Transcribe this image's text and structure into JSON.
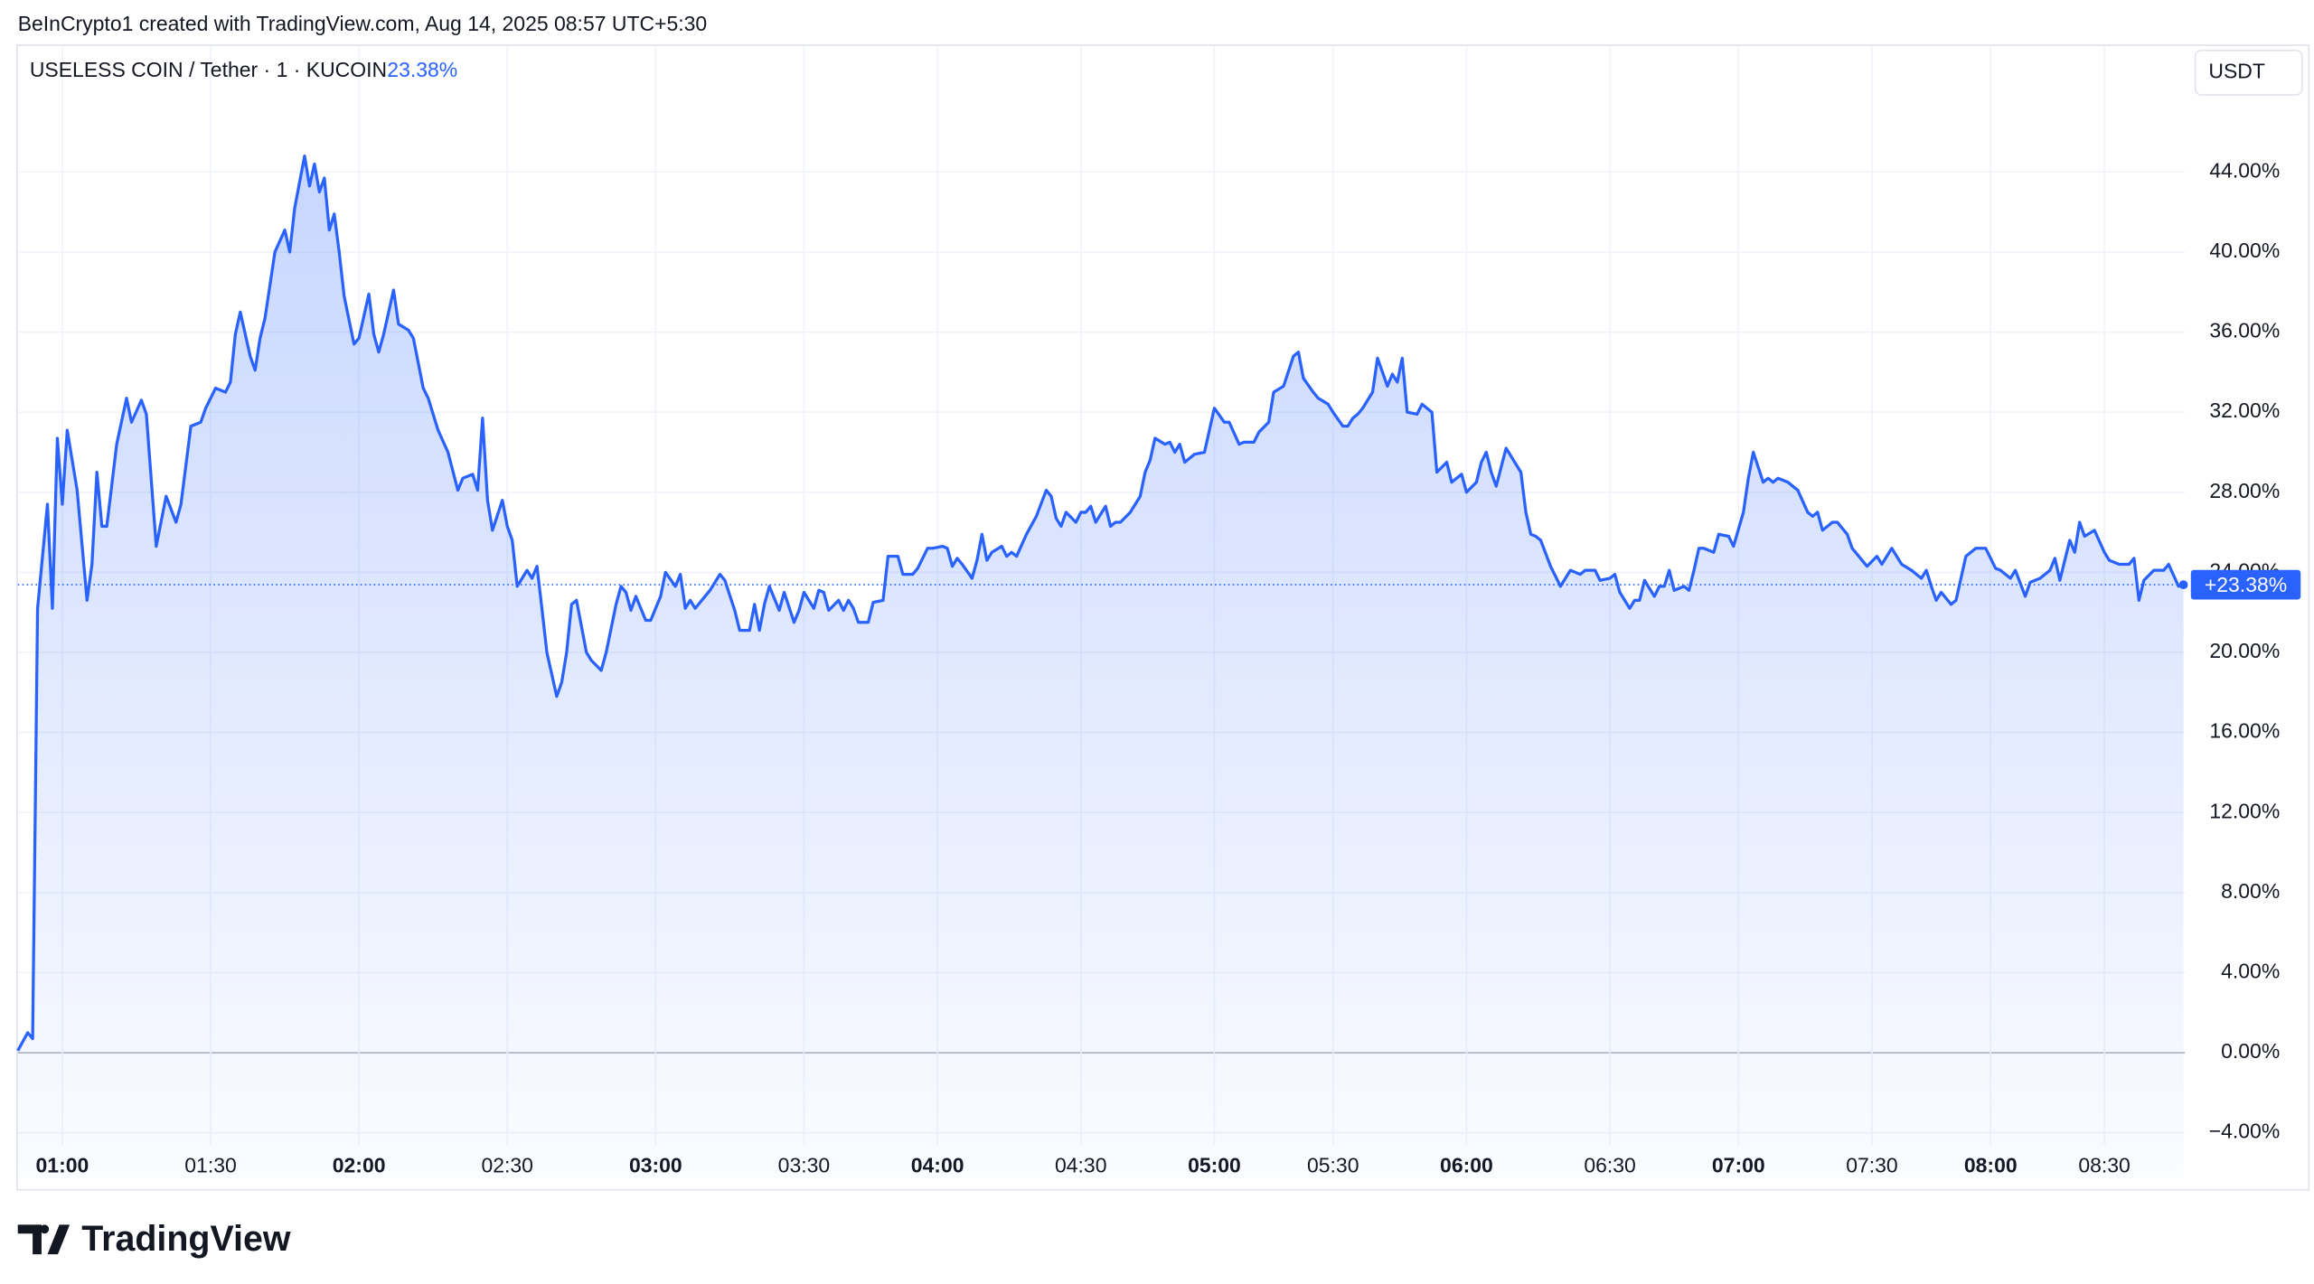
{
  "header": {
    "credit": "BeInCrypto1 created with TradingView.com, Aug 14, 2025 08:57 UTC+5:30",
    "logo": "TradingView"
  },
  "chart_data": {
    "type": "line",
    "symbol": "USELESS COIN / Tether · 1 · KUCOIN",
    "symbol_change": "23.38%",
    "currency": "USDT",
    "last_label": "+23.38%",
    "color": "#2962ff",
    "grid": true,
    "x": [
      0,
      2,
      3,
      4,
      5,
      6,
      7,
      8,
      9,
      10,
      12,
      14,
      15,
      16,
      17,
      18,
      20,
      22,
      23,
      25,
      26,
      28,
      30,
      32,
      33,
      35,
      37,
      38,
      40,
      42,
      43,
      44,
      45,
      47,
      48,
      49,
      50,
      52,
      54,
      55,
      56,
      58,
      59,
      60,
      61,
      62,
      63,
      64,
      65,
      66,
      68,
      69,
      71,
      72,
      73,
      74,
      76,
      77,
      79,
      80,
      82,
      83,
      85,
      87,
      89,
      90,
      92,
      93,
      94,
      95,
      96,
      98,
      99,
      100,
      101,
      103,
      104,
      105,
      106,
      107,
      109,
      110,
      111,
      112,
      113,
      115,
      116,
      118,
      119,
      121,
      122,
      123,
      124,
      125,
      127,
      128,
      130,
      131,
      133,
      134,
      135,
      136,
      137,
      139,
      140,
      142,
      143,
      145,
      146,
      148,
      149,
      150,
      151,
      152,
      154,
      155,
      157,
      158,
      159,
      161,
      162,
      163,
      164,
      166,
      167,
      168,
      169,
      170,
      172,
      173,
      175,
      176,
      178,
      179,
      181,
      182,
      184,
      185,
      187,
      188,
      189,
      190,
      191,
      193,
      194,
      195,
      196,
      197,
      199,
      200,
      201,
      202,
      204,
      206,
      208,
      209,
      210,
      211,
      212,
      214,
      215,
      216,
      217,
      218,
      220,
      221,
      222,
      223,
      225,
      227,
      228,
      229,
      230,
      232,
      233,
      234,
      235,
      236,
      238,
      240,
      241,
      242,
      244,
      245,
      247,
      248,
      250,
      251,
      253,
      254,
      256,
      258,
      259,
      260,
      262,
      263,
      265,
      266,
      268,
      269,
      270,
      271,
      272,
      274,
      275,
      277,
      278,
      279,
      280,
      281,
      283,
      284,
      285,
      286,
      287,
      289,
      290,
      291,
      292,
      293,
      295,
      296,
      297,
      298,
      299,
      301,
      302,
      304,
      305,
      306,
      307,
      308,
      310,
      312,
      314,
      316,
      317,
      319,
      320,
      322,
      323,
      324,
      326,
      327,
      328,
      329,
      331,
      332,
      333,
      334,
      335,
      337,
      338,
      339,
      340,
      341,
      343,
      344,
      346,
      347,
      349,
      350,
      351,
      353,
      354,
      355,
      356,
      358,
      360,
      362,
      363,
      364,
      365,
      367,
      368,
      370,
      371,
      373,
      374,
      376,
      377,
      378,
      379,
      381,
      383,
      385,
      386,
      387,
      388,
      389,
      391,
      392,
      393,
      394,
      396,
      398,
      400,
      401,
      403,
      404,
      406,
      407,
      409,
      411,
      412,
      413,
      415,
      416,
      417,
      418,
      420,
      422,
      423,
      425,
      427,
      428,
      429,
      430,
      432,
      434,
      435,
      437,
      438
    ],
    "values": [
      0.1,
      1.0,
      0.7,
      22.2,
      24.8,
      27.4,
      22.2,
      30.7,
      27.4,
      31.1,
      28.1,
      22.6,
      24.4,
      29.0,
      26.3,
      26.3,
      30.4,
      32.7,
      31.5,
      32.6,
      31.9,
      25.3,
      27.8,
      26.5,
      27.4,
      31.3,
      31.5,
      32.2,
      33.2,
      33.0,
      33.5,
      35.9,
      37.0,
      34.8,
      34.1,
      35.7,
      36.7,
      40.0,
      41.1,
      40.0,
      42.2,
      44.8,
      43.3,
      44.4,
      43.0,
      43.7,
      41.1,
      41.9,
      40.0,
      37.8,
      35.4,
      35.7,
      37.9,
      35.9,
      35.0,
      35.9,
      38.1,
      36.4,
      36.1,
      35.7,
      33.2,
      32.7,
      31.1,
      30.0,
      28.1,
      28.7,
      28.9,
      28.1,
      31.7,
      27.6,
      26.1,
      27.6,
      26.3,
      25.6,
      23.3,
      24.1,
      23.7,
      24.3,
      22.2,
      20.0,
      17.8,
      18.5,
      20.0,
      22.4,
      22.6,
      20.0,
      19.6,
      19.1,
      20.0,
      22.4,
      23.3,
      23.0,
      22.1,
      22.8,
      21.6,
      21.6,
      22.8,
      24.0,
      23.3,
      23.9,
      22.2,
      22.6,
      22.2,
      22.8,
      23.1,
      23.9,
      23.6,
      22.1,
      21.1,
      21.1,
      22.4,
      21.1,
      22.4,
      23.3,
      22.1,
      23.0,
      21.5,
      22.1,
      23.0,
      22.2,
      23.1,
      23.0,
      22.1,
      22.6,
      22.1,
      22.6,
      22.2,
      21.5,
      21.5,
      22.5,
      22.6,
      24.8,
      24.8,
      23.9,
      23.9,
      24.2,
      25.2,
      25.2,
      25.3,
      25.2,
      24.3,
      24.7,
      24.4,
      23.7,
      24.6,
      25.9,
      24.6,
      25.0,
      25.3,
      24.8,
      25.0,
      24.8,
      25.9,
      26.8,
      28.1,
      27.8,
      26.7,
      26.3,
      27.0,
      26.5,
      27.0,
      27.0,
      27.3,
      26.5,
      27.3,
      26.3,
      26.5,
      26.5,
      27.0,
      27.8,
      29.0,
      29.6,
      30.7,
      30.4,
      30.5,
      30.0,
      30.4,
      29.5,
      29.9,
      30.0,
      31.1,
      32.2,
      31.5,
      31.5,
      30.4,
      30.5,
      30.5,
      31.0,
      31.5,
      33.0,
      33.3,
      34.8,
      35.0,
      33.7,
      33.0,
      32.7,
      32.4,
      32.0,
      31.3,
      31.3,
      31.7,
      31.9,
      32.2,
      33.0,
      34.7,
      33.3,
      33.9,
      33.5,
      34.7,
      32.0,
      31.9,
      32.4,
      32.2,
      32.0,
      29.0,
      29.5,
      28.5,
      28.7,
      28.9,
      28.0,
      28.5,
      29.5,
      30.0,
      29.0,
      28.3,
      30.2,
      29.8,
      29.0,
      27.0,
      25.9,
      25.8,
      25.6,
      24.3,
      23.3,
      24.1,
      23.9,
      24.1,
      24.1,
      23.6,
      23.7,
      23.9,
      23.0,
      22.2,
      22.6,
      22.6,
      23.6,
      22.8,
      23.3,
      23.3,
      24.1,
      23.1,
      23.3,
      23.1,
      24.1,
      25.2,
      25.2,
      25.0,
      25.9,
      25.8,
      25.3,
      27.0,
      28.7,
      30.0,
      28.5,
      28.7,
      28.5,
      28.7,
      28.5,
      28.1,
      27.0,
      26.8,
      27.0,
      26.1,
      26.5,
      26.5,
      25.9,
      25.2,
      24.6,
      24.3,
      24.8,
      24.4,
      24.8,
      25.2,
      24.4,
      24.1,
      23.7,
      24.1,
      23.3,
      22.6,
      23.0,
      22.4,
      22.6,
      23.7,
      24.8,
      25.2,
      25.2,
      24.2,
      24.1,
      23.7,
      24.1,
      22.8,
      23.5,
      23.7,
      24.1,
      24.7,
      23.6,
      25.6,
      25.0,
      26.5,
      25.8,
      26.1,
      25.0,
      24.6,
      24.4,
      24.4,
      24.7,
      22.6,
      23.6,
      24.1,
      24.1,
      24.4,
      23.3,
      23.38
    ],
    "xlim": [
      0,
      438
    ],
    "xticks": [
      {
        "value": 9,
        "label": "01:00"
      },
      {
        "value": 39,
        "label": "01:30"
      },
      {
        "value": 69,
        "label": "02:00"
      },
      {
        "value": 99,
        "label": "02:30"
      },
      {
        "value": 129,
        "label": "03:00"
      },
      {
        "value": 159,
        "label": "03:30"
      },
      {
        "value": 186,
        "label": "04:00"
      },
      {
        "value": 215,
        "label": "04:30"
      },
      {
        "value": 242,
        "label": "05:00"
      },
      {
        "value": 266,
        "label": "05:30"
      },
      {
        "value": 293,
        "label": "06:00"
      },
      {
        "value": 322,
        "label": "06:30"
      },
      {
        "value": 348,
        "label": "07:00"
      },
      {
        "value": 375,
        "label": "07:30"
      },
      {
        "value": 399,
        "label": "08:00"
      },
      {
        "value": 422,
        "label": "08:30"
      }
    ],
    "ylim": [
      -4.8,
      47.9
    ],
    "yticks": [
      {
        "value": -4,
        "label": "−4.00%"
      },
      {
        "value": 0,
        "label": "0.00%"
      },
      {
        "value": 4,
        "label": "4.00%"
      },
      {
        "value": 8,
        "label": "8.00%"
      },
      {
        "value": 12,
        "label": "12.00%"
      },
      {
        "value": 16,
        "label": "16.00%"
      },
      {
        "value": 20,
        "label": "20.00%"
      },
      {
        "value": 24,
        "label": "24.00%"
      },
      {
        "value": 28,
        "label": "28.00%"
      },
      {
        "value": 32,
        "label": "32.00%"
      },
      {
        "value": 36,
        "label": "36.00%"
      },
      {
        "value": 40,
        "label": "40.00%"
      },
      {
        "value": 44,
        "label": "44.00%"
      }
    ]
  }
}
